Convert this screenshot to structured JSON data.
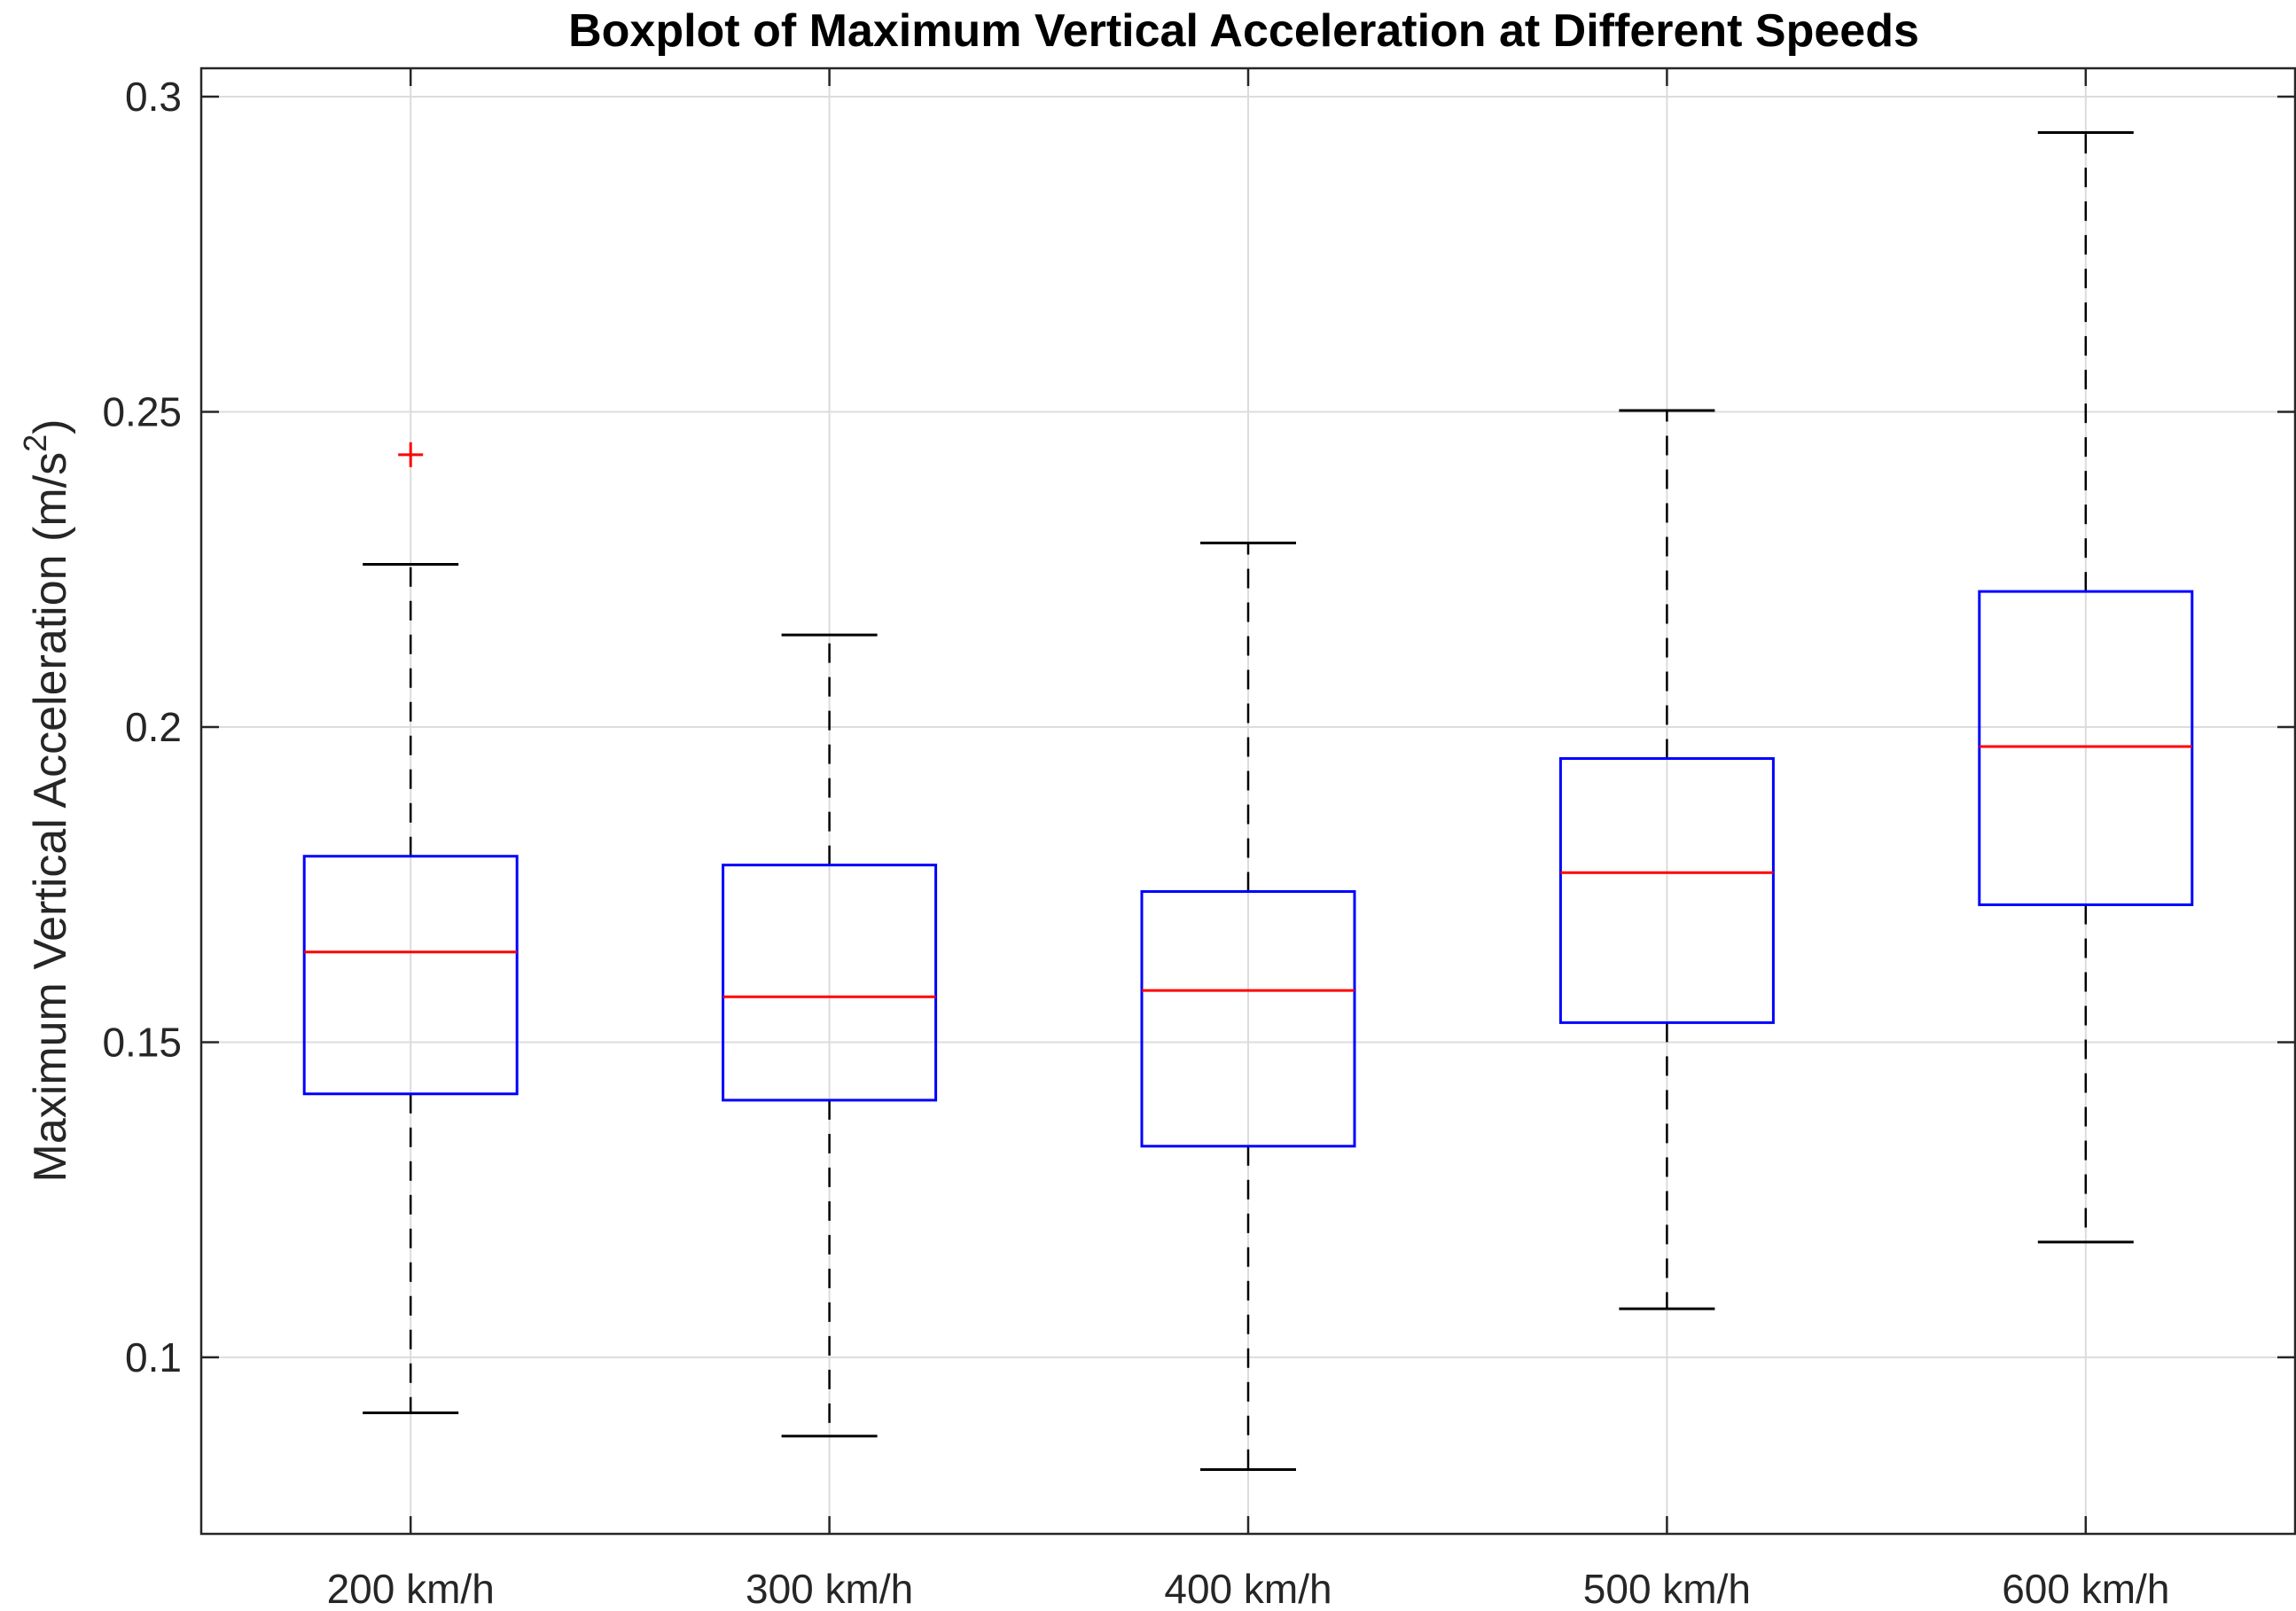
{
  "chart_data": {
    "type": "boxplot",
    "title": "Boxplot of Maximum Vertical Acceleration at Different Speeds",
    "xlabel": "",
    "ylabel": {
      "main": "Maximum Vertical Acceleration (m/s",
      "superscript": "2",
      "close": ")"
    },
    "ylim": [
      0.072,
      0.3045
    ],
    "yticks": [
      0.1,
      0.15,
      0.2,
      0.25,
      0.3
    ],
    "ytick_labels": [
      "0.1",
      "0.15",
      "0.2",
      "0.25",
      "0.3"
    ],
    "grid": true,
    "categories": [
      "200 km/h",
      "300 km/h",
      "400 km/h",
      "500 km/h",
      "600 km/h"
    ],
    "boxes": [
      {
        "whisker_low": 0.0912,
        "q1": 0.1418,
        "median": 0.1643,
        "q3": 0.1795,
        "whisker_high": 0.2258,
        "outliers": [
          0.2432
        ]
      },
      {
        "whisker_low": 0.0875,
        "q1": 0.1408,
        "median": 0.1572,
        "q3": 0.1781,
        "whisker_high": 0.2146,
        "outliers": []
      },
      {
        "whisker_low": 0.0822,
        "q1": 0.1335,
        "median": 0.1582,
        "q3": 0.1739,
        "whisker_high": 0.2292,
        "outliers": []
      },
      {
        "whisker_low": 0.1077,
        "q1": 0.1531,
        "median": 0.1769,
        "q3": 0.195,
        "whisker_high": 0.2502,
        "outliers": []
      },
      {
        "whisker_low": 0.1183,
        "q1": 0.1718,
        "median": 0.1969,
        "q3": 0.2215,
        "whisker_high": 0.2943,
        "outliers": []
      }
    ],
    "colors": {
      "box": "#0000ff",
      "median": "#ff0000",
      "whisker": "#000000",
      "outlier": "#ff0000",
      "grid": "#dcdcdc",
      "axis": "#262626"
    }
  }
}
